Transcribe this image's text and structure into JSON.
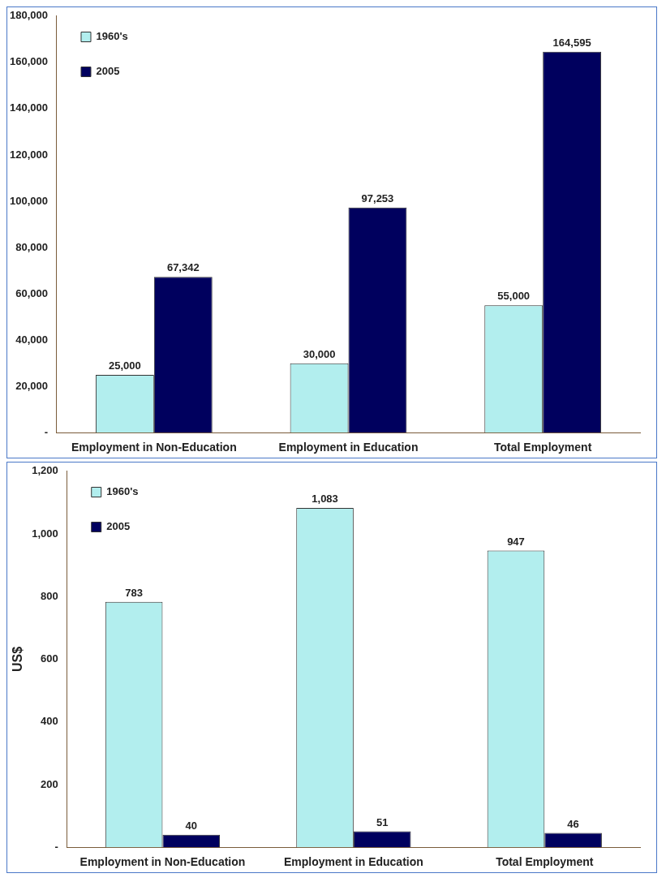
{
  "chart_data": [
    {
      "type": "bar",
      "categories": [
        "Employment in Non-Education",
        "Employment in Education",
        "Total Employment"
      ],
      "series": [
        {
          "name": "1960's",
          "color": "#b2eeee",
          "values": [
            25000,
            30000,
            55000
          ],
          "value_labels": [
            "25,000",
            "30,000",
            "55,000"
          ]
        },
        {
          "name": "2005",
          "color": "#00005e",
          "values": [
            67342,
            97253,
            164595
          ],
          "value_labels": [
            "67,342",
            "97,253",
            "164,595"
          ]
        }
      ],
      "ylim": [
        0,
        180000
      ],
      "yticks": [
        {
          "value": 0,
          "label": "-"
        },
        {
          "value": 20000,
          "label": "20,000"
        },
        {
          "value": 40000,
          "label": "40,000"
        },
        {
          "value": 60000,
          "label": "60,000"
        },
        {
          "value": 80000,
          "label": "80,000"
        },
        {
          "value": 100000,
          "label": "100,000"
        },
        {
          "value": 120000,
          "label": "120,000"
        },
        {
          "value": 140000,
          "label": "140,000"
        },
        {
          "value": 160000,
          "label": "160,000"
        },
        {
          "value": 180000,
          "label": "180,000"
        }
      ],
      "legend": "top left"
    },
    {
      "type": "bar",
      "ylabel": "US$",
      "categories": [
        "Employment in Non-Education",
        "Employment in Education",
        "Total Employment"
      ],
      "series": [
        {
          "name": "1960's",
          "color": "#b2eeee",
          "values": [
            783,
            1083,
            947
          ],
          "value_labels": [
            "783",
            "1,083",
            "947"
          ]
        },
        {
          "name": "2005",
          "color": "#00005e",
          "values": [
            40,
            51,
            46
          ],
          "value_labels": [
            "40",
            "51",
            "46"
          ]
        }
      ],
      "ylim": [
        0,
        1200
      ],
      "yticks": [
        {
          "value": 0,
          "label": "-"
        },
        200,
        400,
        600,
        800,
        {
          "value": 1000,
          "label": "1,000"
        },
        {
          "value": 1200,
          "label": "1,200"
        }
      ],
      "legend": "top left"
    }
  ]
}
